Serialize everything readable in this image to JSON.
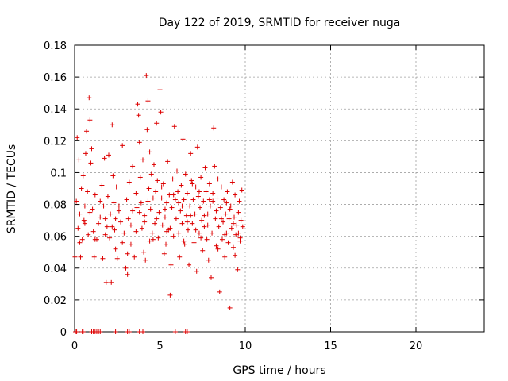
{
  "chart_data": {
    "type": "scatter",
    "title": "Day 122 of 2019, SRMTID for receiver nuga",
    "xlabel": "GPS time / hours",
    "ylabel": "SRMTID / TECUs",
    "xlim": [
      0,
      24
    ],
    "ylim": [
      0,
      0.18
    ],
    "xticks": [
      0,
      5,
      10,
      15,
      20
    ],
    "yticks": [
      0,
      0.02,
      0.04,
      0.06,
      0.08,
      0.1,
      0.12,
      0.14,
      0.16,
      0.18
    ],
    "ytick_labels": [
      "0",
      "0.02",
      "0.04",
      "0.06",
      "0.08",
      "0.1",
      "0.12",
      "0.14",
      "0.16",
      "0.18"
    ],
    "grid": true,
    "legend": "none",
    "marker": "+",
    "color": "#dd0000",
    "series": [
      {
        "points": [
          [
            0.02,
            0.047
          ],
          [
            0.1,
            0.082
          ],
          [
            0.15,
            0.122
          ],
          [
            0.2,
            0.065
          ],
          [
            0.25,
            0.108
          ],
          [
            0.3,
            0.074
          ],
          [
            0.35,
            0.047
          ],
          [
            0.4,
            0.09
          ],
          [
            0.45,
            0.058
          ],
          [
            0.5,
            0.098
          ],
          [
            0.55,
            0.07
          ],
          [
            0.6,
            0.079
          ],
          [
            0.65,
            0.112
          ],
          [
            0.7,
            0.126
          ],
          [
            0.75,
            0.088
          ],
          [
            0.8,
            0.061
          ],
          [
            0.85,
            0.147
          ],
          [
            0.9,
            0.133
          ],
          [
            0.95,
            0.106
          ],
          [
            1.0,
            0.115
          ],
          [
            1.05,
            0.077
          ],
          [
            1.1,
            0.063
          ],
          [
            1.15,
            0.047
          ],
          [
            1.2,
            0.086
          ],
          [
            1.3,
            0.058
          ],
          [
            1.4,
            0.068
          ],
          [
            1.5,
            0.082
          ],
          [
            1.6,
            0.092
          ],
          [
            1.65,
            0.046
          ],
          [
            1.7,
            0.079
          ],
          [
            1.75,
            0.109
          ],
          [
            1.8,
            0.071
          ],
          [
            1.85,
            0.031
          ],
          [
            1.9,
            0.066
          ],
          [
            1.95,
            0.085
          ],
          [
            2.0,
            0.111
          ],
          [
            2.05,
            0.059
          ],
          [
            2.1,
            0.074
          ],
          [
            2.15,
            0.031
          ],
          [
            2.2,
            0.13
          ],
          [
            2.25,
            0.098
          ],
          [
            2.3,
            0.081
          ],
          [
            2.35,
            0.064
          ],
          [
            2.4,
            0.052
          ],
          [
            2.45,
            0.091
          ],
          [
            2.5,
            0.046
          ],
          [
            2.6,
            0.076
          ],
          [
            2.7,
            0.069
          ],
          [
            2.8,
            0.117
          ],
          [
            2.9,
            0.062
          ],
          [
            3.0,
            0.04
          ],
          [
            3.05,
            0.083
          ],
          [
            3.1,
            0.036
          ],
          [
            3.15,
            0.071
          ],
          [
            3.2,
            0.094
          ],
          [
            3.3,
            0.055
          ],
          [
            3.4,
            0.104
          ],
          [
            3.5,
            0.047
          ],
          [
            3.6,
            0.087
          ],
          [
            3.65,
            0.078
          ],
          [
            3.7,
            0.143
          ],
          [
            3.75,
            0.136
          ],
          [
            3.8,
            0.119
          ],
          [
            3.85,
            0.097
          ],
          [
            3.9,
            0.081
          ],
          [
            3.95,
            0.065
          ],
          [
            4.0,
            0.108
          ],
          [
            4.05,
            0.05
          ],
          [
            4.1,
            0.073
          ],
          [
            4.15,
            0.045
          ],
          [
            4.2,
            0.161
          ],
          [
            4.25,
            0.127
          ],
          [
            4.3,
            0.145
          ],
          [
            4.35,
            0.09
          ],
          [
            4.4,
            0.113
          ],
          [
            4.45,
            0.077
          ],
          [
            4.5,
            0.099
          ],
          [
            4.55,
            0.062
          ],
          [
            4.6,
            0.084
          ],
          [
            4.65,
            0.105
          ],
          [
            4.7,
            0.068
          ],
          [
            4.75,
            0.088
          ],
          [
            4.8,
            0.131
          ],
          [
            4.85,
            0.095
          ],
          [
            4.9,
            0.059
          ],
          [
            4.95,
            0.075
          ],
          [
            5.0,
            0.152
          ],
          [
            5.05,
            0.138
          ],
          [
            5.1,
            0.084
          ],
          [
            5.15,
            0.067
          ],
          [
            5.2,
            0.093
          ],
          [
            5.25,
            0.049
          ],
          [
            5.3,
            0.072
          ],
          [
            5.35,
            0.055
          ],
          [
            5.4,
            0.081
          ],
          [
            5.45,
            0.107
          ],
          [
            5.5,
            0.064
          ],
          [
            5.55,
            0.086
          ],
          [
            5.6,
            0.023
          ],
          [
            5.65,
            0.042
          ],
          [
            5.7,
            0.078
          ],
          [
            5.75,
            0.096
          ],
          [
            5.8,
            0.06
          ],
          [
            5.85,
            0.129
          ],
          [
            5.9,
            0.083
          ],
          [
            5.95,
            0.071
          ],
          [
            6.0,
            0.101
          ],
          [
            6.05,
            0.088
          ],
          [
            6.1,
            0.062
          ],
          [
            6.15,
            0.047
          ],
          [
            6.2,
            0.076
          ],
          [
            6.25,
            0.092
          ],
          [
            6.3,
            0.068
          ],
          [
            6.35,
            0.121
          ],
          [
            6.4,
            0.083
          ],
          [
            6.45,
            0.055
          ],
          [
            6.5,
            0.099
          ],
          [
            6.55,
            0.073
          ],
          [
            6.6,
            0.087
          ],
          [
            6.65,
            0.064
          ],
          [
            6.7,
            0.042
          ],
          [
            6.75,
            0.079
          ],
          [
            6.8,
            0.112
          ],
          [
            6.85,
            0.095
          ],
          [
            6.9,
            0.068
          ],
          [
            6.95,
            0.083
          ],
          [
            7.0,
            0.056
          ],
          [
            7.05,
            0.074
          ],
          [
            7.1,
            0.091
          ],
          [
            7.15,
            0.038
          ],
          [
            7.2,
            0.116
          ],
          [
            7.25,
            0.085
          ],
          [
            7.3,
            0.062
          ],
          [
            7.35,
            0.078
          ],
          [
            7.4,
            0.097
          ],
          [
            7.45,
            0.07
          ],
          [
            7.5,
            0.051
          ],
          [
            7.55,
            0.082
          ],
          [
            7.6,
            0.066
          ],
          [
            7.65,
            0.103
          ],
          [
            7.7,
            0.088
          ],
          [
            7.75,
            0.058
          ],
          [
            7.8,
            0.074
          ],
          [
            7.85,
            0.045
          ],
          [
            7.9,
            0.093
          ],
          [
            7.95,
            0.079
          ],
          [
            8.0,
            0.034
          ],
          [
            8.05,
            0.062
          ],
          [
            8.1,
            0.087
          ],
          [
            8.15,
            0.128
          ],
          [
            8.2,
            0.104
          ],
          [
            8.25,
            0.071
          ],
          [
            8.3,
            0.054
          ],
          [
            8.35,
            0.084
          ],
          [
            8.4,
            0.096
          ],
          [
            8.45,
            0.066
          ],
          [
            8.5,
            0.025
          ],
          [
            8.55,
            0.078
          ],
          [
            8.6,
            0.091
          ],
          [
            8.65,
            0.058
          ],
          [
            8.7,
            0.069
          ],
          [
            8.75,
            0.083
          ],
          [
            8.8,
            0.047
          ],
          [
            8.85,
            0.074
          ],
          [
            8.9,
            0.062
          ],
          [
            8.95,
            0.088
          ],
          [
            9.0,
            0.056
          ],
          [
            9.05,
            0.071
          ],
          [
            9.1,
            0.015
          ],
          [
            9.15,
            0.079
          ],
          [
            9.2,
            0.065
          ],
          [
            9.25,
            0.094
          ],
          [
            9.3,
            0.053
          ],
          [
            9.35,
            0.072
          ],
          [
            9.4,
            0.086
          ],
          [
            9.45,
            0.061
          ],
          [
            9.5,
            0.067
          ],
          [
            9.55,
            0.039
          ],
          [
            9.6,
            0.075
          ],
          [
            9.65,
            0.082
          ],
          [
            9.7,
            0.059
          ],
          [
            9.75,
            0.07
          ],
          [
            9.8,
            0.089
          ],
          [
            9.85,
            0.066
          ],
          [
            1.5,
            0.072
          ],
          [
            2.2,
            0.066
          ],
          [
            2.6,
            0.079
          ],
          [
            3.3,
            0.067
          ],
          [
            3.8,
            0.075
          ],
          [
            4.3,
            0.082
          ],
          [
            4.8,
            0.071
          ],
          [
            5.3,
            0.077
          ],
          [
            5.8,
            0.086
          ],
          [
            6.3,
            0.079
          ],
          [
            6.8,
            0.073
          ],
          [
            7.3,
            0.088
          ],
          [
            7.8,
            0.067
          ],
          [
            8.3,
            0.076
          ],
          [
            8.8,
            0.061
          ],
          [
            9.3,
            0.068
          ],
          [
            1.8,
            0.061
          ],
          [
            2.4,
            0.071
          ],
          [
            3.6,
            0.063
          ],
          [
            4.1,
            0.069
          ],
          [
            4.6,
            0.058
          ],
          [
            5.1,
            0.091
          ],
          [
            5.6,
            0.065
          ],
          [
            6.1,
            0.081
          ],
          [
            6.6,
            0.069
          ],
          [
            7.1,
            0.064
          ],
          [
            7.6,
            0.073
          ],
          [
            8.1,
            0.082
          ],
          [
            8.6,
            0.071
          ],
          [
            9.1,
            0.077
          ],
          [
            9.6,
            0.062
          ],
          [
            0.6,
            0.068
          ],
          [
            0.3,
            0.056
          ],
          [
            0.9,
            0.075
          ],
          [
            1.2,
            0.058
          ],
          [
            2.8,
            0.056
          ],
          [
            3.1,
            0.049
          ],
          [
            3.4,
            0.076
          ],
          [
            4.4,
            0.057
          ],
          [
            5.4,
            0.063
          ],
          [
            6.4,
            0.057
          ],
          [
            7.4,
            0.059
          ],
          [
            8.4,
            0.052
          ],
          [
            9.4,
            0.048
          ],
          [
            9.7,
            0.057
          ],
          [
            8.9,
            0.081
          ],
          [
            7.9,
            0.083
          ],
          [
            6.9,
            0.093
          ]
        ]
      }
    ],
    "zero_points_x": [
      0.05,
      0.12,
      0.45,
      0.5,
      1.0,
      1.1,
      1.2,
      1.3,
      1.4,
      1.5,
      2.4,
      3.1,
      3.2,
      3.8,
      4.0,
      5.9,
      6.5,
      6.6
    ]
  }
}
